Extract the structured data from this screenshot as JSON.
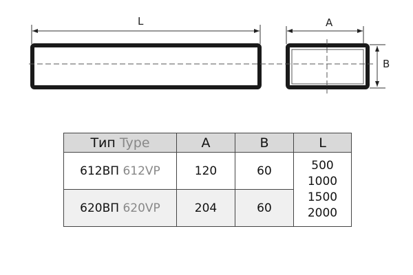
{
  "drawing": {
    "length_label": "L",
    "width_label": "A",
    "height_label": "B"
  },
  "table": {
    "headers": {
      "type_ru": "Тип",
      "type_en": "Type",
      "a": "A",
      "b": "B",
      "l": "L"
    },
    "rows": [
      {
        "type_ru": "612ВП",
        "type_en": "612VP",
        "a": "120",
        "b": "60"
      },
      {
        "type_ru": "620ВП",
        "type_en": "620VP",
        "a": "204",
        "b": "60"
      }
    ],
    "lengths": [
      "500",
      "1000",
      "1500",
      "2000"
    ]
  }
}
